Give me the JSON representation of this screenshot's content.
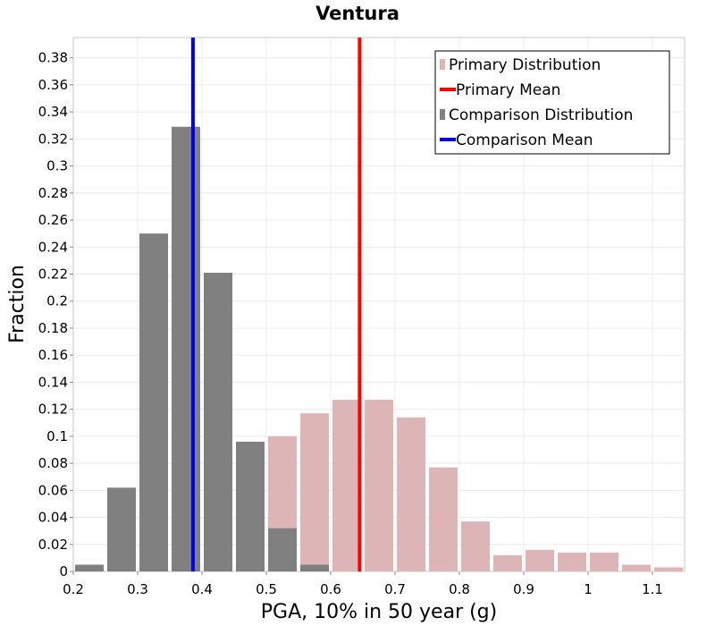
{
  "chart_data": {
    "type": "bar",
    "title": "Ventura",
    "xlabel": "PGA, 10% in 50 year (g)",
    "ylabel": "Fraction",
    "xlim": [
      0.2,
      1.15
    ],
    "ylim": [
      0,
      0.395
    ],
    "x_ticks": [
      "0.2",
      "0.3",
      "0.4",
      "0.5",
      "0.6",
      "0.7",
      "0.8",
      "0.9",
      "1",
      "1.1"
    ],
    "y_ticks": [
      "0",
      "0.02",
      "0.04",
      "0.06",
      "0.08",
      "0.1",
      "0.12",
      "0.14",
      "0.16",
      "0.18",
      "0.2",
      "0.22",
      "0.24",
      "0.26",
      "0.28",
      "0.3",
      "0.32",
      "0.34",
      "0.36",
      "0.38"
    ],
    "bin_width": 0.05,
    "grid": true,
    "legend_position": "top-right",
    "series": [
      {
        "name": "Primary Distribution",
        "kind": "histogram",
        "color": "#deb5b6",
        "bins": [
          {
            "x": 0.475,
            "y": 0.04
          },
          {
            "x": 0.525,
            "y": 0.1
          },
          {
            "x": 0.575,
            "y": 0.117
          },
          {
            "x": 0.625,
            "y": 0.127
          },
          {
            "x": 0.675,
            "y": 0.127
          },
          {
            "x": 0.725,
            "y": 0.114
          },
          {
            "x": 0.775,
            "y": 0.077
          },
          {
            "x": 0.825,
            "y": 0.037
          },
          {
            "x": 0.875,
            "y": 0.012
          },
          {
            "x": 0.925,
            "y": 0.016
          },
          {
            "x": 0.975,
            "y": 0.014
          },
          {
            "x": 1.025,
            "y": 0.014
          },
          {
            "x": 1.075,
            "y": 0.005
          },
          {
            "x": 1.125,
            "y": 0.003
          }
        ]
      },
      {
        "name": "Primary Mean",
        "kind": "vline",
        "color": "#ff0000",
        "x": 0.645
      },
      {
        "name": "Comparison Distribution",
        "kind": "histogram",
        "color": "#808080",
        "bins": [
          {
            "x": 0.225,
            "y": 0.005
          },
          {
            "x": 0.275,
            "y": 0.062
          },
          {
            "x": 0.325,
            "y": 0.25
          },
          {
            "x": 0.375,
            "y": 0.329
          },
          {
            "x": 0.425,
            "y": 0.221
          },
          {
            "x": 0.475,
            "y": 0.096
          },
          {
            "x": 0.525,
            "y": 0.032
          },
          {
            "x": 0.575,
            "y": 0.005
          }
        ]
      },
      {
        "name": "Comparison Mean",
        "kind": "vline",
        "color": "#0000ee",
        "x": 0.386
      }
    ]
  }
}
